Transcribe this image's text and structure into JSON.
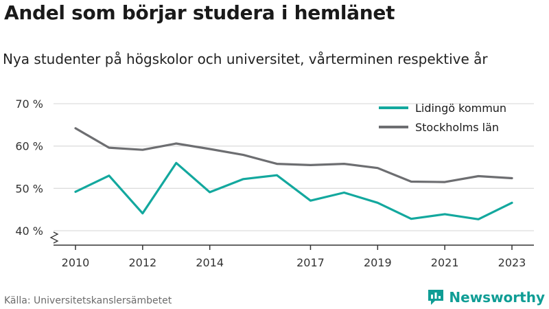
{
  "header": {
    "title": "Andel som börjar studera i hemlänet",
    "subtitle": "Nya studenter på högskolor och universitet, vårterminen respektive år"
  },
  "footer": {
    "source": "Källa: Universitetskanslersämbetet",
    "brand": "Newsworthy"
  },
  "colors": {
    "lidingo": "#13a89e",
    "stockholm": "#6d6e71",
    "grid": "#dddddd",
    "axis": "#333333",
    "brand": "#0f9d95"
  },
  "chart_data": {
    "type": "line",
    "x": [
      2010,
      2011,
      2012,
      2013,
      2014,
      2015,
      2016,
      2017,
      2018,
      2019,
      2020,
      2021,
      2022,
      2023
    ],
    "x_ticks": [
      2010,
      2012,
      2014,
      2017,
      2019,
      2021,
      2023
    ],
    "y_ticks": [
      40,
      50,
      60,
      70
    ],
    "y_tick_labels": [
      "40 %",
      "50 %",
      "60 %",
      "70 %"
    ],
    "ylim": [
      40,
      70
    ],
    "y_axis_break": true,
    "grid": "horizontal",
    "legend_position": "top-right",
    "series": [
      {
        "name": "Lidingö kommun",
        "color": "#13a89e",
        "values": [
          49.2,
          53.0,
          44.1,
          56.0,
          49.1,
          52.2,
          53.1,
          47.1,
          49.0,
          46.6,
          42.8,
          43.9,
          42.7,
          46.6
        ]
      },
      {
        "name": "Stockholms län",
        "color": "#6d6e71",
        "values": [
          64.2,
          59.6,
          59.1,
          60.6,
          59.3,
          57.9,
          55.8,
          55.5,
          55.8,
          54.8,
          51.6,
          51.5,
          52.9,
          52.4
        ]
      }
    ]
  }
}
